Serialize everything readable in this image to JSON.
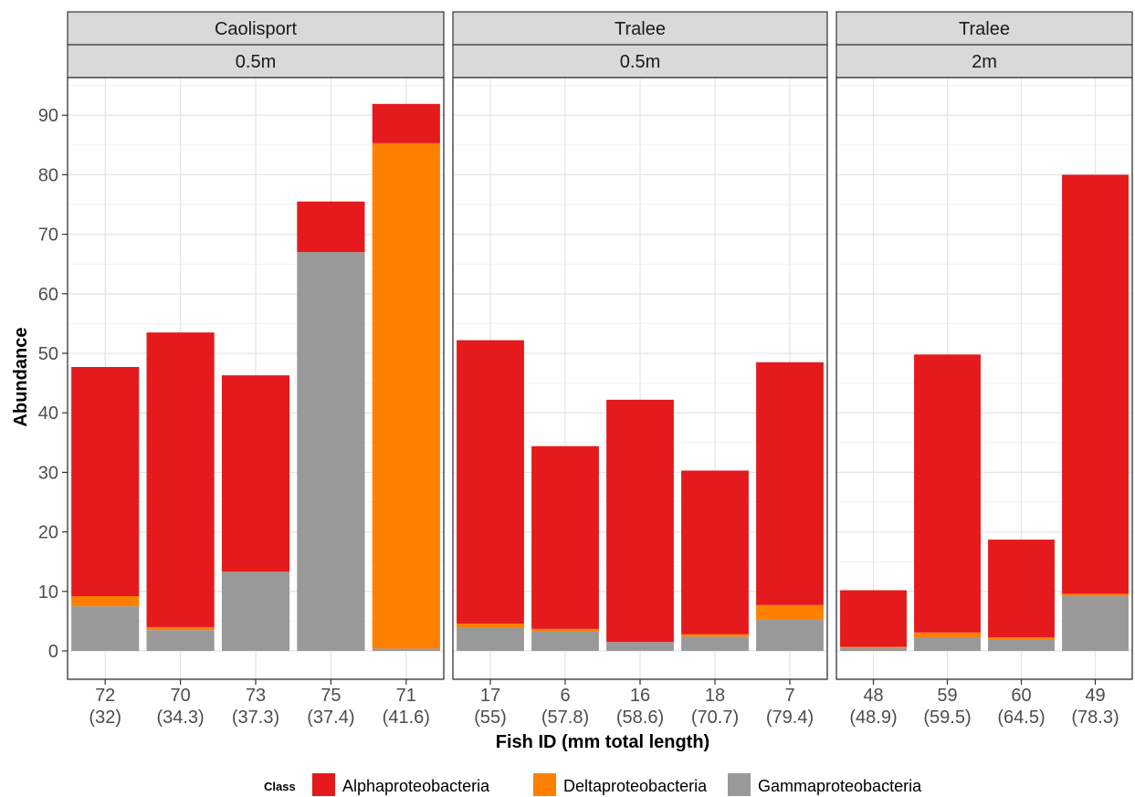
{
  "chart_data": {
    "type": "bar",
    "stacked": true,
    "xlabel": "Fish ID (mm total length)",
    "ylabel": "Abundance",
    "ylim": [
      -4.5,
      96
    ],
    "yticks": [
      0,
      10,
      20,
      30,
      40,
      50,
      60,
      70,
      80,
      90
    ],
    "grid": true,
    "legend": {
      "title": "Class",
      "position": "bottom",
      "entries": [
        {
          "name": "Alphaproteobacteria",
          "color": "#e41a1c"
        },
        {
          "name": "Deltaproteobacteria",
          "color": "#ff7f00"
        },
        {
          "name": "Gammaproteobacteria",
          "color": "#999999"
        }
      ]
    },
    "panels": [
      {
        "site": "Caolisport",
        "depth": "0.5m",
        "categories": [
          {
            "id": "72",
            "length": "(32)"
          },
          {
            "id": "70",
            "length": "(34.3)"
          },
          {
            "id": "73",
            "length": "(37.3)"
          },
          {
            "id": "75",
            "length": "(37.4)"
          },
          {
            "id": "71",
            "length": "(41.6)"
          }
        ],
        "series": [
          {
            "name": "Gammaproteobacteria",
            "values": [
              7.5,
              3.5,
              13.3,
              67.0,
              0.4
            ]
          },
          {
            "name": "Deltaproteobacteria",
            "values": [
              1.7,
              0.5,
              0.0,
              0.0,
              84.9
            ]
          },
          {
            "name": "Alphaproteobacteria",
            "values": [
              38.5,
              49.5,
              33.0,
              8.5,
              6.6
            ]
          }
        ]
      },
      {
        "site": "Tralee",
        "depth": "0.5m",
        "categories": [
          {
            "id": "17",
            "length": "(55)"
          },
          {
            "id": "6",
            "length": "(57.8)"
          },
          {
            "id": "16",
            "length": "(58.6)"
          },
          {
            "id": "18",
            "length": "(70.7)"
          },
          {
            "id": "7",
            "length": "(79.4)"
          }
        ],
        "series": [
          {
            "name": "Gammaproteobacteria",
            "values": [
              3.9,
              3.3,
              1.5,
              2.4,
              5.3
            ]
          },
          {
            "name": "Deltaproteobacteria",
            "values": [
              0.7,
              0.4,
              0.0,
              0.4,
              2.4
            ]
          },
          {
            "name": "Alphaproteobacteria",
            "values": [
              47.6,
              30.7,
              40.7,
              27.5,
              40.8
            ]
          }
        ]
      },
      {
        "site": "Tralee",
        "depth": "2m",
        "categories": [
          {
            "id": "48",
            "length": "(48.9)"
          },
          {
            "id": "59",
            "length": "(59.5)"
          },
          {
            "id": "60",
            "length": "(64.5)"
          },
          {
            "id": "49",
            "length": "(78.3)"
          }
        ],
        "series": [
          {
            "name": "Gammaproteobacteria",
            "values": [
              0.5,
              2.3,
              2.0,
              9.2
            ]
          },
          {
            "name": "Deltaproteobacteria",
            "values": [
              0.2,
              0.8,
              0.3,
              0.4
            ]
          },
          {
            "name": "Alphaproteobacteria",
            "values": [
              9.5,
              46.7,
              16.4,
              70.4
            ]
          }
        ]
      }
    ]
  }
}
